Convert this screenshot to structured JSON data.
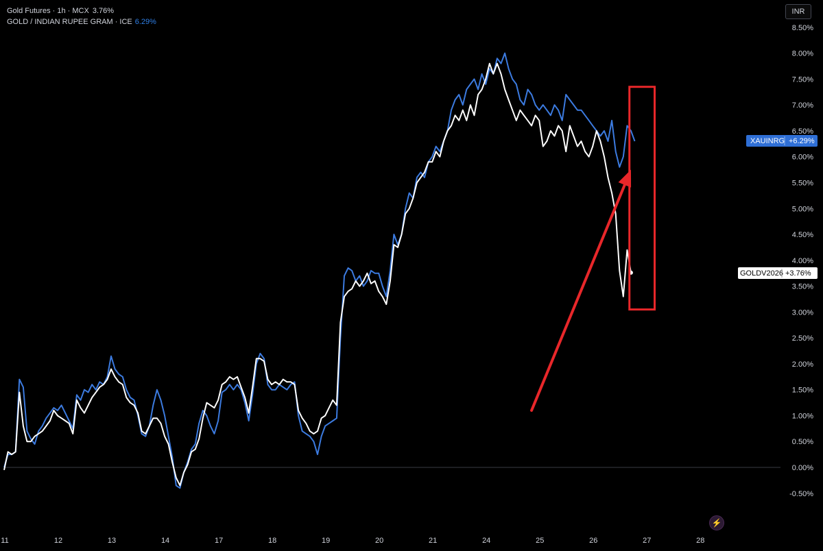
{
  "legend": {
    "line1_label": "Gold Futures · 1h · MCX",
    "line1_value": "3.76%",
    "line2_label": "GOLD / INDIAN RUPEE GRAM · ICE",
    "line2_value": "6.29%"
  },
  "currency_button": "INR",
  "flash_icon": "lightning-icon",
  "chart_data": {
    "type": "line",
    "ylim": [
      -0.75,
      8.6
    ],
    "xlim": [
      0,
      184
    ],
    "y_tick_labels": [
      "8.50%",
      "8.00%",
      "7.50%",
      "7.00%",
      "6.50%",
      "6.00%",
      "5.50%",
      "5.00%",
      "4.50%",
      "4.00%",
      "3.50%",
      "3.00%",
      "2.50%",
      "2.00%",
      "1.50%",
      "1.00%",
      "0.50%",
      "0.00%",
      "-0.50%"
    ],
    "y_tick_values": [
      8.5,
      8.0,
      7.5,
      7.0,
      6.5,
      6.0,
      5.5,
      5.0,
      4.5,
      4.0,
      3.5,
      3.0,
      2.5,
      2.0,
      1.5,
      1.0,
      0.5,
      0.0,
      -0.5
    ],
    "x_tick_labels": [
      "11",
      "12",
      "13",
      "14",
      "17",
      "18",
      "19",
      "20",
      "21",
      "24",
      "25",
      "26",
      "27",
      "28"
    ],
    "x_tick_values": [
      0,
      14,
      28,
      42,
      56,
      70,
      84,
      98,
      112,
      126,
      140,
      154,
      168,
      182
    ],
    "series": [
      {
        "name": "XAUINRG",
        "badge": "XAUINRG",
        "badge_value": "+6.29%",
        "color": "#3c7be0",
        "values": [
          0.0,
          0.25,
          0.25,
          0.3,
          1.7,
          1.55,
          0.7,
          0.55,
          0.45,
          0.7,
          0.8,
          0.95,
          1.05,
          1.15,
          1.1,
          1.2,
          1.05,
          0.9,
          0.75,
          1.4,
          1.3,
          1.5,
          1.45,
          1.6,
          1.5,
          1.65,
          1.6,
          1.75,
          2.15,
          1.9,
          1.8,
          1.75,
          1.5,
          1.35,
          1.3,
          1.0,
          0.65,
          0.6,
          0.8,
          1.2,
          1.5,
          1.3,
          1.0,
          0.6,
          0.2,
          -0.35,
          -0.4,
          -0.1,
          0.1,
          0.35,
          0.45,
          0.85,
          1.1,
          1.0,
          0.8,
          0.65,
          0.9,
          1.45,
          1.5,
          1.6,
          1.5,
          1.6,
          1.5,
          1.25,
          0.9,
          1.4,
          2.0,
          2.2,
          2.1,
          1.6,
          1.5,
          1.5,
          1.6,
          1.55,
          1.5,
          1.6,
          1.65,
          1.0,
          0.7,
          0.65,
          0.6,
          0.5,
          0.25,
          0.6,
          0.8,
          0.85,
          0.9,
          0.95,
          2.5,
          3.7,
          3.85,
          3.8,
          3.6,
          3.7,
          3.5,
          3.6,
          3.8,
          3.75,
          3.75,
          3.5,
          3.3,
          3.8,
          4.5,
          4.3,
          4.5,
          5.0,
          5.3,
          5.2,
          5.6,
          5.7,
          5.6,
          5.9,
          6.0,
          6.2,
          6.1,
          6.3,
          6.5,
          6.9,
          7.1,
          7.2,
          7.0,
          7.3,
          7.4,
          7.5,
          7.3,
          7.6,
          7.4,
          7.7,
          7.6,
          7.9,
          7.8,
          8.0,
          7.7,
          7.5,
          7.4,
          7.1,
          7.0,
          7.3,
          7.2,
          7.0,
          6.9,
          7.0,
          6.9,
          6.8,
          7.0,
          6.9,
          6.7,
          7.2,
          7.1,
          7.0,
          6.9,
          6.9,
          6.8,
          6.7,
          6.6,
          6.5,
          6.4,
          6.5,
          6.3,
          6.7,
          6.1,
          5.8,
          6.0,
          6.6,
          6.5,
          6.3
        ]
      },
      {
        "name": "GOLDV2026",
        "badge": "GOLDV2026",
        "badge_value": "+3.76%",
        "color": "#ffffff",
        "values": [
          -0.05,
          0.3,
          0.25,
          0.3,
          1.45,
          0.8,
          0.5,
          0.5,
          0.6,
          0.65,
          0.7,
          0.8,
          0.9,
          1.1,
          1.0,
          0.95,
          0.9,
          0.85,
          0.65,
          1.3,
          1.15,
          1.05,
          1.2,
          1.35,
          1.45,
          1.55,
          1.6,
          1.7,
          1.9,
          1.75,
          1.65,
          1.6,
          1.35,
          1.25,
          1.2,
          1.05,
          0.7,
          0.65,
          0.8,
          0.95,
          0.95,
          0.85,
          0.6,
          0.45,
          0.1,
          -0.2,
          -0.35,
          -0.1,
          0.05,
          0.3,
          0.35,
          0.55,
          0.95,
          1.25,
          1.2,
          1.15,
          1.3,
          1.6,
          1.65,
          1.75,
          1.7,
          1.75,
          1.55,
          1.35,
          1.05,
          1.55,
          2.1,
          2.1,
          2.05,
          1.7,
          1.6,
          1.65,
          1.6,
          1.7,
          1.65,
          1.65,
          1.6,
          1.1,
          0.95,
          0.85,
          0.7,
          0.65,
          0.7,
          0.95,
          1.0,
          1.15,
          1.3,
          1.2,
          2.8,
          3.3,
          3.4,
          3.45,
          3.6,
          3.5,
          3.6,
          3.75,
          3.55,
          3.6,
          3.4,
          3.3,
          3.15,
          3.6,
          4.3,
          4.25,
          4.5,
          4.9,
          5.0,
          5.2,
          5.5,
          5.6,
          5.7,
          5.9,
          5.9,
          6.1,
          6.0,
          6.3,
          6.5,
          6.6,
          6.8,
          6.7,
          6.9,
          6.7,
          7.0,
          6.8,
          7.2,
          7.3,
          7.5,
          7.8,
          7.6,
          7.8,
          7.6,
          7.3,
          7.1,
          6.9,
          6.7,
          6.9,
          6.8,
          6.7,
          6.6,
          6.8,
          6.7,
          6.2,
          6.3,
          6.5,
          6.4,
          6.6,
          6.5,
          6.1,
          6.6,
          6.4,
          6.2,
          6.3,
          6.1,
          6.0,
          6.2,
          6.5,
          6.3,
          6.0,
          5.6,
          5.3,
          4.9,
          3.8,
          3.3,
          4.2,
          3.76
        ]
      }
    ],
    "annotations": [
      {
        "type": "arrow",
        "color": "#e8272a",
        "from": [
          138,
          1.1
        ],
        "to": [
          164,
          5.75
        ]
      },
      {
        "type": "rect",
        "color": "#e8272a",
        "x": [
          163.6,
          170.2
        ],
        "y": [
          3.05,
          7.35
        ]
      }
    ]
  }
}
